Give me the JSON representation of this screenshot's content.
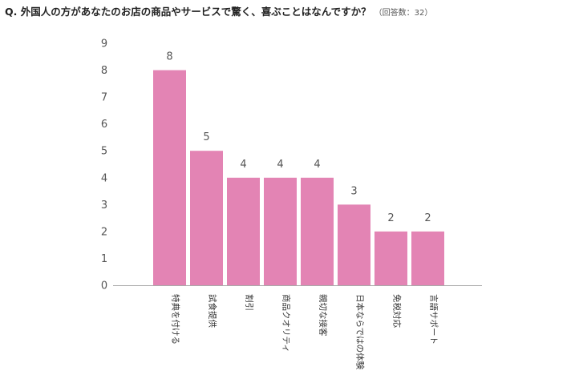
{
  "chart_data": {
    "type": "bar",
    "title": "Q. 外国人の方があなたのお店の商品やサービスで驚く、喜ぶことはなんですか？",
    "subtitle": "（回答数：32）",
    "categories": [
      "特典を付ける",
      "試食提供",
      "割引",
      "商品クオリティ",
      "親切な接客",
      "日本ならではの体験",
      "免税対応",
      "言語サポート"
    ],
    "values": [
      8,
      5,
      4,
      4,
      4,
      3,
      2,
      2
    ],
    "xlabel": "",
    "ylabel": "",
    "ylim": [
      0,
      9
    ],
    "yticks": [
      0,
      1,
      2,
      3,
      4,
      5,
      6,
      7,
      8,
      9
    ],
    "grid": false,
    "legend": "none",
    "bar_color": "#e384b4",
    "axis_color": "#aaaaaa"
  }
}
